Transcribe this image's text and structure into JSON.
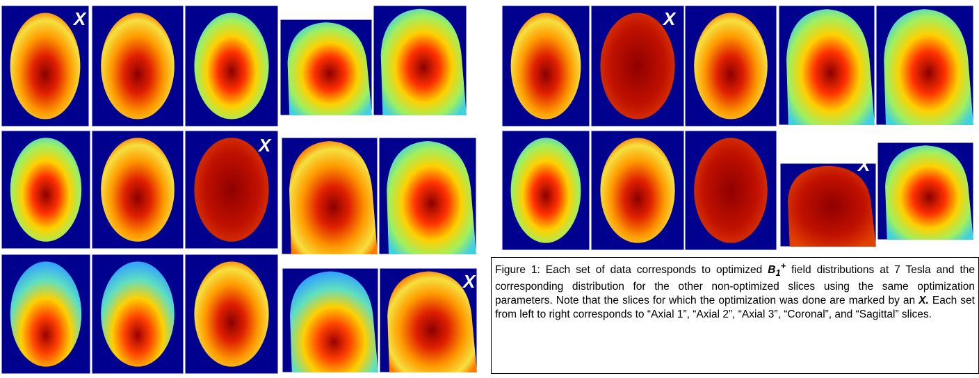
{
  "markers": [
    "X",
    "X",
    "X",
    "X",
    "X"
  ],
  "caption": {
    "before": "Figure 1: Each set of data corresponds to optimized ",
    "symbol": "B",
    "subscript": "1",
    "superscript": "+",
    "middle": " field distributions at 7 Tesla and the corresponding distribution for the other non-optimized slices using the same optimization parameters.  Note that the slices for which the optimization was done are marked by an ",
    "marker": "X.",
    "after": "  Each set from left to right corresponds to “Axial 1”, “Axial 2”, “Axial 3”, “Coronal”, and “Sagittal” slices."
  }
}
